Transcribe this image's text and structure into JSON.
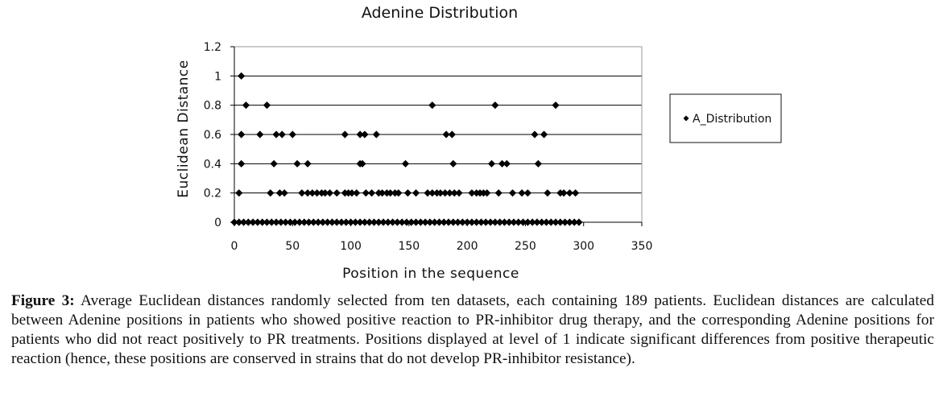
{
  "chart_data": {
    "type": "scatter",
    "title": "Adenine Distribution",
    "xlabel": "Position in the sequence",
    "ylabel": "Euclidean Distance",
    "xlim": [
      0,
      350
    ],
    "ylim": [
      0,
      1.2
    ],
    "xticks": [
      "0",
      "50",
      "100",
      "150",
      "200",
      "250",
      "300",
      "350"
    ],
    "yticks": [
      "0",
      "0.2",
      "0.4",
      "0.6",
      "0.8",
      "1",
      "1.2"
    ],
    "grid": "horizontal",
    "legend_position": "right",
    "marker_color": "#000000",
    "series": [
      {
        "name": "A_Distribution",
        "points": [
          [
            6,
            1.0
          ],
          [
            10,
            0.8
          ],
          [
            28,
            0.8
          ],
          [
            170,
            0.8
          ],
          [
            224,
            0.8
          ],
          [
            276,
            0.8
          ],
          [
            6,
            0.6
          ],
          [
            22,
            0.6
          ],
          [
            36,
            0.6
          ],
          [
            41,
            0.6
          ],
          [
            50,
            0.6
          ],
          [
            95,
            0.6
          ],
          [
            108,
            0.6
          ],
          [
            112,
            0.6
          ],
          [
            122,
            0.6
          ],
          [
            182,
            0.6
          ],
          [
            187,
            0.6
          ],
          [
            258,
            0.6
          ],
          [
            266,
            0.6
          ],
          [
            6,
            0.4
          ],
          [
            34,
            0.4
          ],
          [
            54,
            0.4
          ],
          [
            63,
            0.4
          ],
          [
            108,
            0.4
          ],
          [
            110,
            0.4
          ],
          [
            147,
            0.4
          ],
          [
            188,
            0.4
          ],
          [
            221,
            0.4
          ],
          [
            230,
            0.4
          ],
          [
            234,
            0.4
          ],
          [
            261,
            0.4
          ],
          [
            4,
            0.2
          ],
          [
            31,
            0.2
          ],
          [
            39,
            0.2
          ],
          [
            43,
            0.2
          ],
          [
            58,
            0.2
          ],
          [
            63,
            0.2
          ],
          [
            67,
            0.2
          ],
          [
            71,
            0.2
          ],
          [
            75,
            0.2
          ],
          [
            78,
            0.2
          ],
          [
            82,
            0.2
          ],
          [
            88,
            0.2
          ],
          [
            95,
            0.2
          ],
          [
            98,
            0.2
          ],
          [
            101,
            0.2
          ],
          [
            105,
            0.2
          ],
          [
            113,
            0.2
          ],
          [
            118,
            0.2
          ],
          [
            124,
            0.2
          ],
          [
            127,
            0.2
          ],
          [
            131,
            0.2
          ],
          [
            134,
            0.2
          ],
          [
            138,
            0.2
          ],
          [
            141,
            0.2
          ],
          [
            149,
            0.2
          ],
          [
            156,
            0.2
          ],
          [
            166,
            0.2
          ],
          [
            170,
            0.2
          ],
          [
            174,
            0.2
          ],
          [
            177,
            0.2
          ],
          [
            181,
            0.2
          ],
          [
            185,
            0.2
          ],
          [
            189,
            0.2
          ],
          [
            193,
            0.2
          ],
          [
            204,
            0.2
          ],
          [
            208,
            0.2
          ],
          [
            211,
            0.2
          ],
          [
            214,
            0.2
          ],
          [
            217,
            0.2
          ],
          [
            227,
            0.2
          ],
          [
            239,
            0.2
          ],
          [
            247,
            0.2
          ],
          [
            252,
            0.2
          ],
          [
            269,
            0.2
          ],
          [
            280,
            0.2
          ],
          [
            283,
            0.2
          ],
          [
            288,
            0.2
          ],
          [
            293,
            0.2
          ],
          [
            0,
            0
          ],
          [
            4,
            0
          ],
          [
            8,
            0
          ],
          [
            12,
            0
          ],
          [
            16,
            0
          ],
          [
            20,
            0
          ],
          [
            24,
            0
          ],
          [
            28,
            0
          ],
          [
            32,
            0
          ],
          [
            36,
            0
          ],
          [
            40,
            0
          ],
          [
            44,
            0
          ],
          [
            48,
            0
          ],
          [
            52,
            0
          ],
          [
            56,
            0
          ],
          [
            60,
            0
          ],
          [
            64,
            0
          ],
          [
            68,
            0
          ],
          [
            72,
            0
          ],
          [
            76,
            0
          ],
          [
            80,
            0
          ],
          [
            84,
            0
          ],
          [
            88,
            0
          ],
          [
            92,
            0
          ],
          [
            96,
            0
          ],
          [
            100,
            0
          ],
          [
            104,
            0
          ],
          [
            108,
            0
          ],
          [
            112,
            0
          ],
          [
            116,
            0
          ],
          [
            120,
            0
          ],
          [
            124,
            0
          ],
          [
            128,
            0
          ],
          [
            132,
            0
          ],
          [
            136,
            0
          ],
          [
            140,
            0
          ],
          [
            144,
            0
          ],
          [
            148,
            0
          ],
          [
            152,
            0
          ],
          [
            156,
            0
          ],
          [
            160,
            0
          ],
          [
            164,
            0
          ],
          [
            168,
            0
          ],
          [
            172,
            0
          ],
          [
            176,
            0
          ],
          [
            180,
            0
          ],
          [
            184,
            0
          ],
          [
            188,
            0
          ],
          [
            192,
            0
          ],
          [
            196,
            0
          ],
          [
            200,
            0
          ],
          [
            204,
            0
          ],
          [
            208,
            0
          ],
          [
            212,
            0
          ],
          [
            216,
            0
          ],
          [
            220,
            0
          ],
          [
            224,
            0
          ],
          [
            228,
            0
          ],
          [
            232,
            0
          ],
          [
            236,
            0
          ],
          [
            240,
            0
          ],
          [
            244,
            0
          ],
          [
            248,
            0
          ],
          [
            252,
            0
          ],
          [
            256,
            0
          ],
          [
            260,
            0
          ],
          [
            264,
            0
          ],
          [
            268,
            0
          ],
          [
            272,
            0
          ],
          [
            276,
            0
          ],
          [
            280,
            0
          ],
          [
            284,
            0
          ],
          [
            288,
            0
          ],
          [
            292,
            0
          ],
          [
            296,
            0
          ]
        ]
      }
    ]
  },
  "caption": {
    "label": "Figure 3:",
    "text": "Average Euclidean distances randomly selected from ten datasets, each containing 189 patients. Euclidean distances are calculated between Adenine positions in patients who showed positive reaction to PR-inhibitor drug therapy, and the corresponding Adenine positions for patients who did not react positively to PR treatments. Positions displayed at level of 1 indicate significant differences from positive therapeutic reaction (hence, these positions are conserved in strains that do not develop PR-inhibitor resistance)."
  }
}
